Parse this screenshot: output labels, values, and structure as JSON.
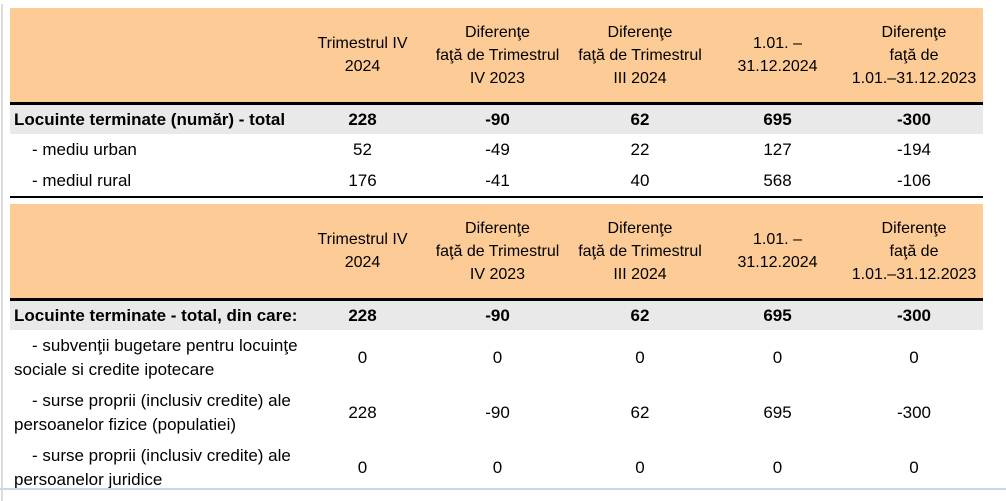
{
  "page": {
    "accent_orange": "#fccb96",
    "total_row_gray": "#e9e9e9",
    "bottom_divider_blue": "#c3dbe1"
  },
  "columns": {
    "col1": "Trimestrul IV\n2024",
    "col2": "Diferenţe\nfaţă de Trimestrul\nIV 2023",
    "col3": "Diferenţe\nfaţă de Trimestrul\nIII 2024",
    "col4": "1.01. –\n31.12.2024",
    "col5": "Diferenţe\nfaţă de\n1.01.–31.12.2023"
  },
  "table1": {
    "rows": [
      {
        "label": "Locuinte terminate (număr) - total",
        "values": [
          "228",
          "-90",
          "62",
          "695",
          "-300"
        ]
      },
      {
        "label": "- mediu urban",
        "values": [
          "52",
          "-49",
          "22",
          "127",
          "-194"
        ]
      },
      {
        "label": "- mediul rural",
        "values": [
          "176",
          "-41",
          "40",
          "568",
          "-106"
        ]
      }
    ]
  },
  "table2": {
    "rows": [
      {
        "label": "Locuinte terminate - total, din care:",
        "values": [
          "228",
          "-90",
          "62",
          "695",
          "-300"
        ]
      },
      {
        "label": "- subvenţii bugetare pentru locuinţe\nsociale si credite ipotecare",
        "values": [
          "0",
          "0",
          "0",
          "0",
          "0"
        ]
      },
      {
        "label": "- surse proprii (inclusiv credite) ale\npersoanelor fizice (populatiei)",
        "values": [
          "228",
          "-90",
          "62",
          "695",
          "-300"
        ]
      },
      {
        "label": "- surse proprii (inclusiv credite) ale\npersoanelor juridice",
        "values": [
          "0",
          "0",
          "0",
          "0",
          "0"
        ]
      }
    ]
  }
}
